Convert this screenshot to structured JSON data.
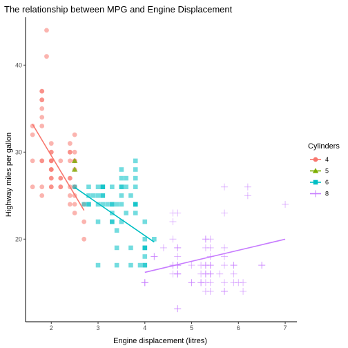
{
  "chart_data": {
    "type": "scatter",
    "title": "The relationship between MPG and Engine Displacement",
    "xlabel": "Engine displacement (litres)",
    "ylabel": "Highway miles per gallon",
    "xlim": [
      1.45,
      7.25
    ],
    "ylim": [
      10.5,
      45.5
    ],
    "xticks": [
      2,
      3,
      4,
      5,
      6,
      7
    ],
    "yticks": [
      20,
      30,
      40
    ],
    "grid": false,
    "legend": {
      "title": "Cylinders",
      "position": "right"
    },
    "colors": {
      "4": "#F8766D",
      "5": "#7CAE00",
      "6": "#00BFC4",
      "8": "#C77CFF"
    },
    "series": [
      {
        "name": "4",
        "marker": "circle",
        "points": [
          [
            1.8,
            29
          ],
          [
            1.8,
            29
          ],
          [
            2.0,
            31
          ],
          [
            2.0,
            30
          ],
          [
            1.8,
            26
          ],
          [
            1.8,
            25
          ],
          [
            2.0,
            28
          ],
          [
            2.0,
            27
          ],
          [
            2.2,
            26
          ],
          [
            2.4,
            27
          ],
          [
            2.4,
            30
          ],
          [
            2.4,
            24
          ],
          [
            2.5,
            26
          ],
          [
            2.5,
            25
          ],
          [
            2.4,
            26
          ],
          [
            2.4,
            25
          ],
          [
            2.0,
            26
          ],
          [
            2.0,
            29
          ],
          [
            2.5,
            32
          ],
          [
            2.5,
            29
          ],
          [
            2.5,
            28
          ],
          [
            2.5,
            26
          ],
          [
            2.2,
            27
          ],
          [
            2.2,
            26
          ],
          [
            2.5,
            24
          ],
          [
            2.5,
            23
          ],
          [
            2.7,
            24
          ],
          [
            2.7,
            22
          ],
          [
            2.7,
            20
          ],
          [
            1.6,
            33
          ],
          [
            1.6,
            32
          ],
          [
            1.6,
            29
          ],
          [
            1.6,
            26
          ],
          [
            1.8,
            36
          ],
          [
            1.8,
            34
          ],
          [
            1.8,
            36
          ],
          [
            1.8,
            37
          ],
          [
            2.0,
            29
          ],
          [
            2.0,
            27
          ],
          [
            2.4,
            31
          ],
          [
            2.4,
            30
          ],
          [
            2.0,
            29
          ],
          [
            1.8,
            35
          ],
          [
            1.8,
            37
          ],
          [
            1.9,
            44
          ],
          [
            1.9,
            41
          ],
          [
            2.0,
            28
          ],
          [
            2.5,
            29
          ],
          [
            2.2,
            29
          ],
          [
            1.8,
            33
          ],
          [
            2.0,
            28
          ],
          [
            2.0,
            26
          ],
          [
            2.0,
            30
          ],
          [
            2.4,
            27
          ],
          [
            2.5,
            30
          ],
          [
            2.2,
            27
          ],
          [
            2.4,
            29
          ]
        ],
        "trend": {
          "x1": 1.6,
          "x2": 2.7,
          "slope": -9.0,
          "intercept": 47.6
        }
      },
      {
        "name": "5",
        "marker": "triangle",
        "points": [
          [
            2.5,
            29
          ],
          [
            2.5,
            29
          ],
          [
            2.5,
            28
          ],
          [
            2.5,
            28
          ]
        ],
        "trend": null
      },
      {
        "name": "6",
        "marker": "square",
        "points": [
          [
            2.8,
            24
          ],
          [
            2.8,
            25
          ],
          [
            3.1,
            25
          ],
          [
            2.8,
            24
          ],
          [
            3.1,
            26
          ],
          [
            3.1,
            26
          ],
          [
            3.1,
            25
          ],
          [
            3.8,
            23
          ],
          [
            3.8,
            24
          ],
          [
            3.8,
            24
          ],
          [
            4.0,
            20
          ],
          [
            3.0,
            26
          ],
          [
            3.3,
            24
          ],
          [
            3.3,
            22
          ],
          [
            3.3,
            23
          ],
          [
            3.8,
            24
          ],
          [
            4.0,
            18
          ],
          [
            4.0,
            17
          ],
          [
            4.0,
            19
          ],
          [
            3.0,
            17
          ],
          [
            3.4,
            17
          ],
          [
            3.4,
            19
          ],
          [
            3.7,
            19
          ],
          [
            3.7,
            17
          ],
          [
            3.9,
            17
          ],
          [
            4.0,
            17
          ],
          [
            4.0,
            19
          ],
          [
            4.0,
            19
          ],
          [
            3.5,
            26
          ],
          [
            3.5,
            27
          ],
          [
            3.8,
            28
          ],
          [
            3.8,
            29
          ],
          [
            3.5,
            26
          ],
          [
            3.6,
            26
          ],
          [
            3.3,
            26
          ],
          [
            3.5,
            28
          ],
          [
            3.8,
            27
          ],
          [
            3.0,
            24
          ],
          [
            3.3,
            22
          ],
          [
            2.7,
            24
          ],
          [
            3.1,
            26
          ],
          [
            3.4,
            21
          ],
          [
            3.8,
            26
          ],
          [
            4.0,
            22
          ],
          [
            3.5,
            22
          ],
          [
            3.6,
            23
          ],
          [
            3.5,
            24
          ],
          [
            3.7,
            25
          ],
          [
            3.0,
            25
          ],
          [
            2.9,
            25
          ],
          [
            3.0,
            22
          ],
          [
            2.5,
            26
          ],
          [
            4.2,
            20
          ],
          [
            2.8,
            26
          ],
          [
            3.5,
            25
          ],
          [
            3.3,
            24
          ],
          [
            3.1,
            24
          ],
          [
            3.2,
            24
          ],
          [
            3.4,
            24
          ],
          [
            3.6,
            27
          ]
        ],
        "trend": {
          "x1": 2.5,
          "x2": 4.2,
          "slope": -3.7,
          "intercept": 35.2
        }
      },
      {
        "name": "8",
        "marker": "cross",
        "points": [
          [
            5.7,
            26
          ],
          [
            5.7,
            23
          ],
          [
            6.2,
            26
          ],
          [
            6.2,
            25
          ],
          [
            7.0,
            24
          ],
          [
            5.3,
            17
          ],
          [
            5.3,
            19
          ],
          [
            5.7,
            17
          ],
          [
            6.5,
            17
          ],
          [
            5.2,
            15
          ],
          [
            5.2,
            17
          ],
          [
            5.7,
            18
          ],
          [
            5.9,
            17
          ],
          [
            4.7,
            16
          ],
          [
            4.7,
            18
          ],
          [
            4.7,
            17
          ],
          [
            5.2,
            16
          ],
          [
            5.2,
            15
          ],
          [
            5.7,
            15
          ],
          [
            5.9,
            15
          ],
          [
            4.6,
            17
          ],
          [
            5.4,
            16
          ],
          [
            5.4,
            17
          ],
          [
            4.0,
            15
          ],
          [
            4.0,
            15
          ],
          [
            4.6,
            16
          ],
          [
            5.0,
            15
          ],
          [
            4.2,
            18
          ],
          [
            4.4,
            19
          ],
          [
            4.6,
            17
          ],
          [
            4.7,
            12
          ],
          [
            4.7,
            17
          ],
          [
            4.7,
            16
          ],
          [
            4.7,
            12
          ],
          [
            4.7,
            19
          ],
          [
            5.7,
            19
          ],
          [
            6.1,
            15
          ],
          [
            5.3,
            14
          ],
          [
            5.3,
            15
          ],
          [
            5.7,
            14
          ],
          [
            6.5,
            17
          ],
          [
            5.4,
            14
          ],
          [
            5.4,
            15
          ],
          [
            5.4,
            17
          ],
          [
            5.4,
            18
          ],
          [
            5.4,
            20
          ],
          [
            5.0,
            17
          ],
          [
            5.0,
            15
          ],
          [
            4.6,
            20
          ],
          [
            5.3,
            20
          ],
          [
            4.6,
            23
          ],
          [
            4.6,
            22
          ],
          [
            4.7,
            17
          ],
          [
            5.7,
            14
          ],
          [
            5.4,
            19
          ],
          [
            4.2,
            18
          ],
          [
            4.7,
            19
          ],
          [
            5.3,
            17
          ],
          [
            5.3,
            16
          ],
          [
            6.0,
            15
          ],
          [
            5.3,
            20
          ],
          [
            4.0,
            15
          ],
          [
            4.7,
            23
          ],
          [
            5.3,
            16
          ],
          [
            4.7,
            16
          ],
          [
            5.6,
            16
          ],
          [
            5.4,
            16
          ],
          [
            5.9,
            17
          ],
          [
            5.9,
            16
          ],
          [
            6.1,
            14
          ]
        ],
        "trend": {
          "x1": 4.0,
          "x2": 7.0,
          "slope": 1.27,
          "intercept": 11.1
        }
      }
    ]
  }
}
